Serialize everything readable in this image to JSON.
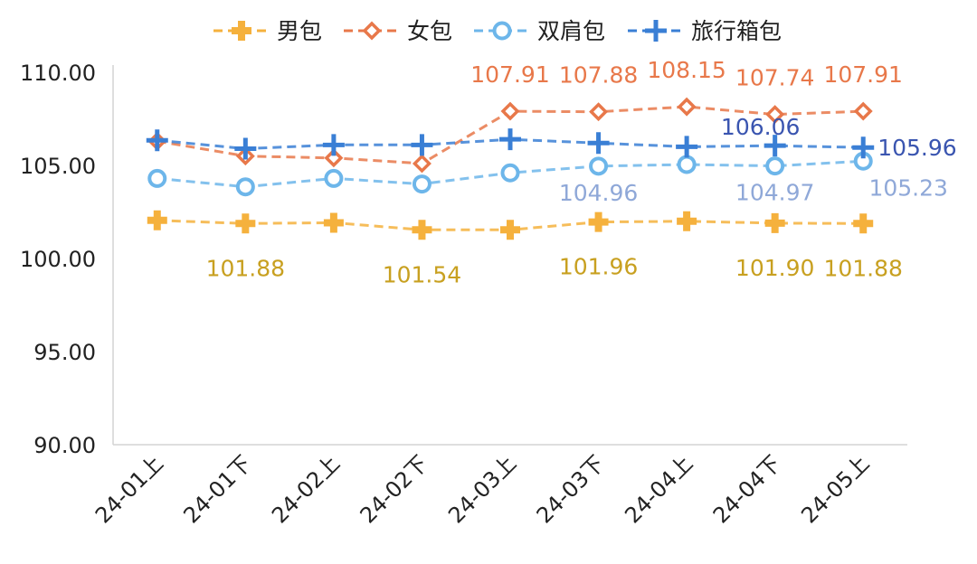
{
  "chart_data": {
    "type": "line",
    "categories": [
      "24-01上",
      "24-01下",
      "24-02上",
      "24-02下",
      "24-03上",
      "24-03下",
      "24-04上",
      "24-04下",
      "24-05上"
    ],
    "ylim": [
      90,
      110
    ],
    "yticks": [
      "90.00",
      "95.00",
      "100.00",
      "105.00",
      "110.00"
    ],
    "grid": false,
    "legend_position": "top",
    "series": [
      {
        "name": "男包",
        "color": "#F5B13D",
        "marker": "plus",
        "values": [
          102.05,
          101.88,
          101.92,
          101.54,
          101.54,
          101.96,
          102.0,
          101.9,
          101.88
        ],
        "labels": [
          "",
          "101.88",
          "",
          "101.54",
          "",
          "101.96",
          "",
          "101.90",
          "101.88"
        ],
        "label_color": "#C8A020"
      },
      {
        "name": "女包",
        "color": "#E8784A",
        "marker": "diamond",
        "values": [
          106.3,
          105.5,
          105.4,
          105.1,
          107.91,
          107.88,
          108.15,
          107.74,
          107.91
        ],
        "labels": [
          "",
          "",
          "",
          "",
          "107.91",
          "107.88",
          "108.15",
          "107.74",
          "107.91"
        ],
        "label_color": "#E8784A"
      },
      {
        "name": "双肩包",
        "color": "#6DB6EA",
        "marker": "circle",
        "values": [
          104.3,
          103.85,
          104.3,
          104.0,
          104.6,
          104.96,
          105.05,
          104.97,
          105.23
        ],
        "labels": [
          "",
          "",
          "",
          "",
          "",
          "104.96",
          "",
          "104.97",
          "105.23"
        ],
        "label_color": "#8FA8D8"
      },
      {
        "name": "旅行箱包",
        "color": "#3A7FD5",
        "marker": "cross",
        "values": [
          106.35,
          105.9,
          106.1,
          106.1,
          106.4,
          106.2,
          106.0,
          106.06,
          105.96
        ],
        "labels": [
          "",
          "",
          "",
          "",
          "",
          "",
          "",
          "106.06",
          "105.96"
        ],
        "label_color": "#3A55B0"
      }
    ]
  }
}
